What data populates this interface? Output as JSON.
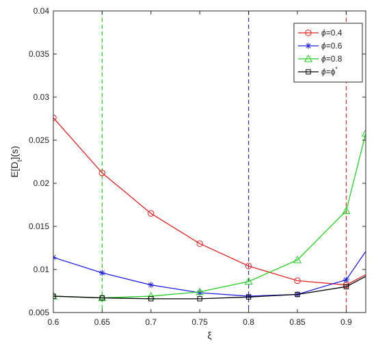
{
  "chart_data": {
    "type": "line",
    "xlabel": "ξ",
    "ylabel": "E[D_t](s)",
    "xlim": [
      0.6,
      0.92
    ],
    "ylim": [
      0.005,
      0.04
    ],
    "x_ticks": [
      0.6,
      0.65,
      0.7,
      0.75,
      0.8,
      0.85,
      0.9
    ],
    "x_tick_labels": [
      "0.6",
      "0.65",
      "0.7",
      "0.75",
      "0.8",
      "0.85",
      "0.9"
    ],
    "y_ticks": [
      0.005,
      0.01,
      0.015,
      0.02,
      0.025,
      0.03,
      0.035,
      0.04
    ],
    "y_tick_labels": [
      "0.005",
      "0.01",
      "0.015",
      "0.02",
      "0.025",
      "0.03",
      "0.035",
      "0.04"
    ],
    "grid": false,
    "legend_position": "top-right",
    "vertical_lines": [
      {
        "x": 0.65,
        "color": "#22cc22",
        "style": "dashed"
      },
      {
        "x": 0.8,
        "color": "#2a2ad4",
        "style": "dashed"
      },
      {
        "x": 0.9,
        "color": "#e83030",
        "style": "dashed"
      }
    ],
    "series": [
      {
        "name": "ϕ=0.4",
        "color": "#e02020",
        "marker": "circle",
        "x": [
          0.6,
          0.65,
          0.7,
          0.75,
          0.8,
          0.85,
          0.9,
          0.92
        ],
        "y": [
          0.0276,
          0.0212,
          0.0165,
          0.013,
          0.0104,
          0.0087,
          0.0082,
          0.0094
        ],
        "marker_count": 7
      },
      {
        "name": "ϕ=0.6",
        "color": "#2020e0",
        "marker": "star",
        "x": [
          0.6,
          0.65,
          0.7,
          0.75,
          0.8,
          0.85,
          0.9,
          0.92
        ],
        "y": [
          0.0114,
          0.0096,
          0.0082,
          0.0073,
          0.0069,
          0.0071,
          0.0088,
          0.0121
        ],
        "marker_count": 7
      },
      {
        "name": "ϕ=0.8",
        "color": "#22cc22",
        "marker": "triangle",
        "x": [
          0.6,
          0.65,
          0.7,
          0.75,
          0.8,
          0.85,
          0.9,
          0.92
        ],
        "y": [
          0.0069,
          0.0067,
          0.0069,
          0.0074,
          0.0086,
          0.0111,
          0.0168,
          0.0258
        ],
        "marker_count": 8
      },
      {
        "name": "ϕ=ϕ*",
        "color": "#000000",
        "marker": "square",
        "x": [
          0.6,
          0.65,
          0.7,
          0.75,
          0.8,
          0.85,
          0.9,
          0.92
        ],
        "y": [
          0.0069,
          0.0067,
          0.0066,
          0.0066,
          0.0068,
          0.0071,
          0.008,
          0.0092
        ],
        "marker_count": 7
      }
    ]
  },
  "legend": {
    "labels": [
      {
        "pre": "ϕ",
        "post": "=0.4",
        "sup": ""
      },
      {
        "pre": "ϕ",
        "post": "=0.6",
        "sup": ""
      },
      {
        "pre": "ϕ",
        "post": "=0.8",
        "sup": ""
      },
      {
        "pre": "ϕ",
        "post": "=ϕ",
        "sup": "*"
      }
    ]
  },
  "ylabel_parts": {
    "main": "E[D",
    "sub": "t",
    "tail": "](s)"
  }
}
